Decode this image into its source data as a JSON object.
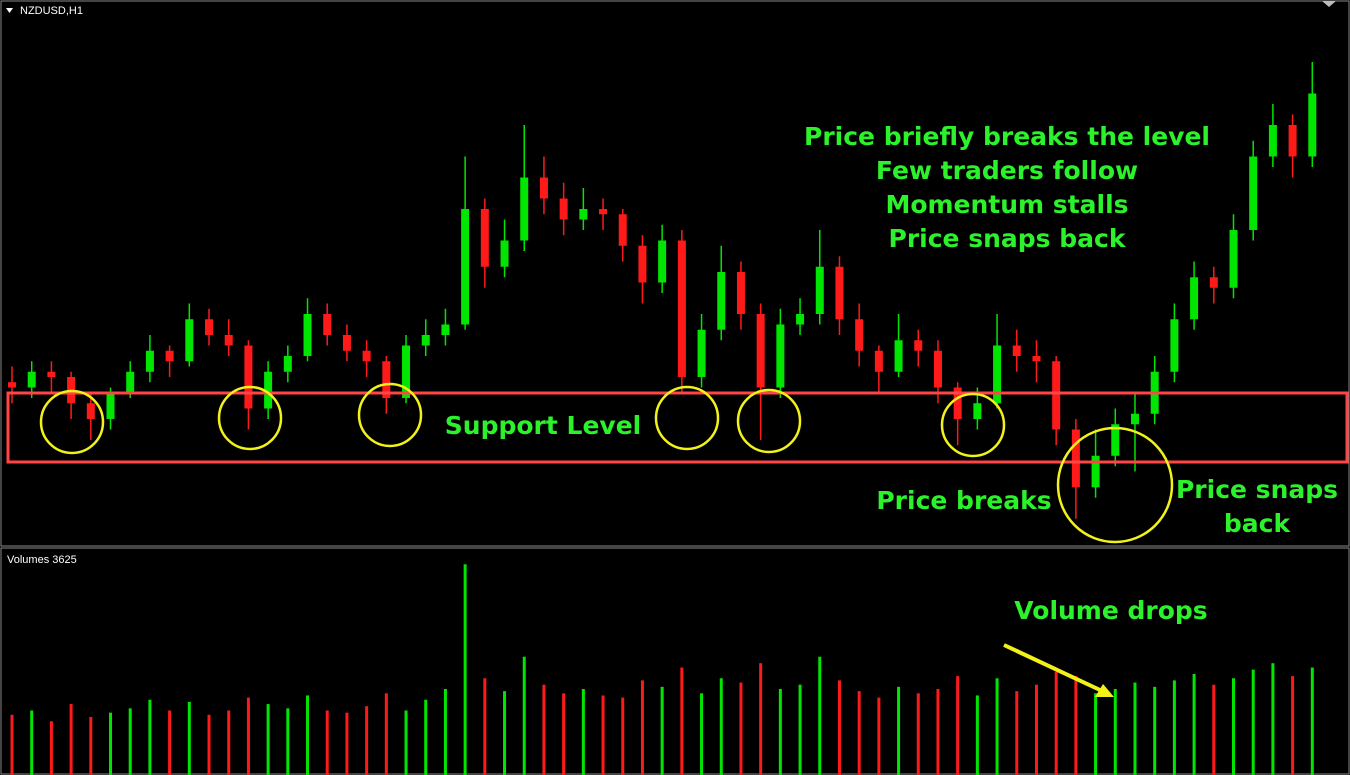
{
  "chart_data": {
    "type": "candlestick",
    "symbol": "NZDUSD,H1",
    "volume_label": "Volumes 3625",
    "annotations": {
      "top": [
        "Price briefly breaks the level",
        "Few traders follow",
        "Momentum stalls",
        "Price snaps back"
      ],
      "support": "Support Level",
      "breaks": "Price breaks",
      "snaps": [
        "Price snaps",
        "back"
      ],
      "volume": "Volume drops"
    },
    "up_color": "#00e600",
    "down_color": "#ff1a1a",
    "ylim": [
      0,
      100
    ],
    "volume_ylim": [
      0,
      100
    ],
    "ohlc": [
      [
        31,
        34,
        27,
        30
      ],
      [
        30,
        35,
        28,
        33
      ],
      [
        33,
        35,
        29,
        32
      ],
      [
        32,
        33,
        24,
        27
      ],
      [
        27,
        29,
        20,
        24
      ],
      [
        24,
        30,
        22,
        29
      ],
      [
        29,
        35,
        28,
        33
      ],
      [
        33,
        40,
        31,
        37
      ],
      [
        37,
        38,
        32,
        35
      ],
      [
        35,
        46,
        34,
        43
      ],
      [
        43,
        45,
        38,
        40
      ],
      [
        40,
        43,
        36,
        38
      ],
      [
        38,
        39,
        22,
        26
      ],
      [
        26,
        35,
        24,
        33
      ],
      [
        33,
        38,
        31,
        36
      ],
      [
        36,
        47,
        35,
        44
      ],
      [
        44,
        46,
        38,
        40
      ],
      [
        40,
        42,
        35,
        37
      ],
      [
        37,
        39,
        32,
        35
      ],
      [
        35,
        36,
        25,
        28
      ],
      [
        28,
        40,
        27,
        38
      ],
      [
        38,
        43,
        36,
        40
      ],
      [
        40,
        45,
        38,
        42
      ],
      [
        42,
        74,
        41,
        64
      ],
      [
        64,
        66,
        49,
        53
      ],
      [
        53,
        62,
        51,
        58
      ],
      [
        58,
        80,
        56,
        70
      ],
      [
        70,
        74,
        63,
        66
      ],
      [
        66,
        69,
        59,
        62
      ],
      [
        62,
        68,
        60,
        64
      ],
      [
        64,
        66,
        60,
        63
      ],
      [
        63,
        64,
        54,
        57
      ],
      [
        57,
        59,
        46,
        50
      ],
      [
        50,
        61,
        48,
        58
      ],
      [
        58,
        60,
        29,
        32
      ],
      [
        32,
        44,
        30,
        41
      ],
      [
        41,
        57,
        39,
        52
      ],
      [
        52,
        54,
        41,
        44
      ],
      [
        44,
        46,
        20,
        30
      ],
      [
        30,
        45,
        28,
        42
      ],
      [
        42,
        47,
        40,
        44
      ],
      [
        44,
        60,
        42,
        53
      ],
      [
        53,
        55,
        40,
        43
      ],
      [
        43,
        46,
        34,
        37
      ],
      [
        37,
        38,
        29,
        33
      ],
      [
        33,
        44,
        32,
        39
      ],
      [
        39,
        41,
        34,
        37
      ],
      [
        37,
        39,
        27,
        30
      ],
      [
        30,
        31,
        19,
        24
      ],
      [
        24,
        30,
        22,
        27
      ],
      [
        27,
        44,
        26,
        38
      ],
      [
        38,
        41,
        33,
        36
      ],
      [
        36,
        39,
        31,
        35
      ],
      [
        35,
        36,
        19,
        22
      ],
      [
        22,
        24,
        5,
        11
      ],
      [
        11,
        22,
        9,
        17
      ],
      [
        17,
        26,
        15,
        23
      ],
      [
        23,
        29,
        14,
        25
      ],
      [
        25,
        36,
        23,
        33
      ],
      [
        33,
        46,
        31,
        43
      ],
      [
        43,
        54,
        41,
        51
      ],
      [
        51,
        53,
        46,
        49
      ],
      [
        49,
        63,
        47,
        60
      ],
      [
        60,
        77,
        58,
        74
      ],
      [
        74,
        84,
        72,
        80
      ],
      [
        80,
        82,
        70,
        74
      ],
      [
        74,
        92,
        72,
        86
      ]
    ],
    "volumes": [
      28,
      30,
      25,
      33,
      27,
      29,
      31,
      35,
      30,
      34,
      28,
      30,
      36,
      33,
      31,
      37,
      30,
      29,
      32,
      38,
      30,
      35,
      40,
      98,
      45,
      39,
      55,
      42,
      38,
      40,
      37,
      36,
      44,
      41,
      50,
      38,
      45,
      43,
      52,
      40,
      42,
      55,
      44,
      39,
      36,
      41,
      38,
      40,
      46,
      37,
      45,
      39,
      42,
      48,
      46,
      38,
      40,
      43,
      41,
      44,
      47,
      42,
      45,
      49,
      52,
      46,
      50
    ]
  }
}
